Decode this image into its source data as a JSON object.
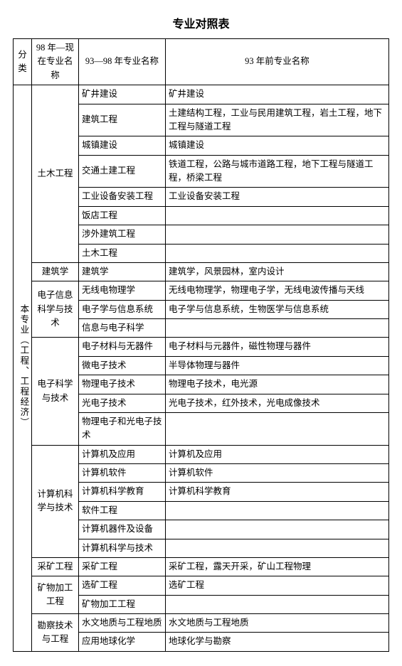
{
  "title": "专业对照表",
  "header": {
    "cat": "分类",
    "col98now": "98 年—现在专业名称",
    "col9398": "93—98 年专业名称",
    "colpre93": "93 年前专业名称"
  },
  "cat_label": "本专业（工程、工程经济）",
  "groups": {
    "g1": "土木工程",
    "g2": "建筑学",
    "g3": "电子信息科学与技术",
    "g4": "电子科学与技术",
    "g5": "计算机科学与技术",
    "g6": "采矿工程",
    "g7": "矿物加工工程",
    "g8": "勘察技术与工程"
  },
  "rows": {
    "r1c": "矿井建设",
    "r1d": "矿井建设",
    "r2c": "建筑工程",
    "r2d": "土建结构工程，工业与民用建筑工程，岩土工程，地下工程与隧道工程",
    "r3c": "城镇建设",
    "r3d": "城镇建设",
    "r4c": "交通土建工程",
    "r4d": "铁道工程，公路与城市道路工程，地下工程与隧道工程，桥梁工程",
    "r5c": "工业设备安装工程",
    "r5d": "工业设备安装工程",
    "r6c": "饭店工程",
    "r6d": "",
    "r7c": "涉外建筑工程",
    "r7d": "",
    "r8c": "土木工程",
    "r8d": "",
    "r9c": "建筑学",
    "r9d": "建筑学，风景园林，室内设计",
    "r10c": "无线电物理学",
    "r10d": "无线电物理学，物理电子学，无线电波传播与天线",
    "r11c": "电子学与信息系统",
    "r11d": "电子学与信息系统，生物医学与信息系统",
    "r12c": "信息与电子科学",
    "r12d": "",
    "r13c": "电子材料与无器件",
    "r13d": "电子材料与元器件，磁性物理与器件",
    "r14c": "微电子技术",
    "r14d": "半导体物理与器件",
    "r15c": "物理电子技术",
    "r15d": "物理电子技术，电光源",
    "r16c": "光电子技术",
    "r16d": "光电子技术，红外技术，光电成像技术",
    "r17c": "物理电子和光电子技术",
    "r17d": "",
    "r18c": "计算机及应用",
    "r18d": "计算机及应用",
    "r19c": "计算机软件",
    "r19d": "计算机软件",
    "r20c": "计算机科学教育",
    "r20d": "计算机科学教育",
    "r21c": "软件工程",
    "r21d": "",
    "r22c": "计算机器件及设备",
    "r22d": "",
    "r23c": "计算机科学与技术",
    "r23d": "",
    "r24c": "采矿工程",
    "r24d": "采矿工程，露天开采，矿山工程物理",
    "r25c": "选矿工程",
    "r25d": "选矿工程",
    "r26c": "矿物加工工程",
    "r26d": "",
    "r27c": "水文地质与工程地质",
    "r27d": "水文地质与工程地质",
    "r28c": "应用地球化学",
    "r28d": "地球化学与勘察"
  }
}
